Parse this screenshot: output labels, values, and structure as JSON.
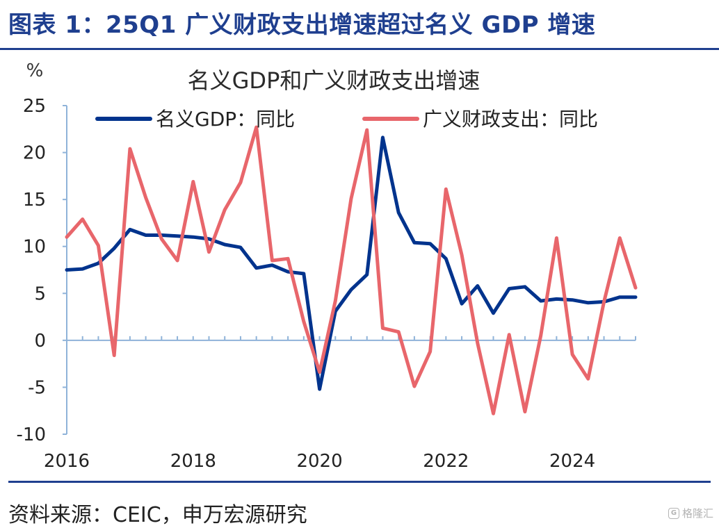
{
  "figure": {
    "title": "图表 1：25Q1 广义财政支出增速超过名义 GDP 增速",
    "source": "资料来源：CEIC，申万宏源研究",
    "watermark": "格隆汇"
  },
  "chart_data": {
    "type": "line",
    "title": "名义GDP和广义财政支出增速",
    "ylabel": "%",
    "xlabel": "",
    "ylim": [
      -10,
      25
    ],
    "yticks": [
      25,
      20,
      15,
      10,
      5,
      0,
      -5,
      -10
    ],
    "xtick_labels": [
      "2016",
      "2018",
      "2020",
      "2022",
      "2024"
    ],
    "x": [
      "2016Q1",
      "2016Q2",
      "2016Q3",
      "2016Q4",
      "2017Q1",
      "2017Q2",
      "2017Q3",
      "2017Q4",
      "2018Q1",
      "2018Q2",
      "2018Q3",
      "2018Q4",
      "2019Q1",
      "2019Q2",
      "2019Q3",
      "2019Q4",
      "2020Q1",
      "2020Q2",
      "2020Q3",
      "2020Q4",
      "2021Q1",
      "2021Q2",
      "2021Q3",
      "2021Q4",
      "2022Q1",
      "2022Q2",
      "2022Q3",
      "2022Q4",
      "2023Q1",
      "2023Q2",
      "2023Q3",
      "2023Q4",
      "2024Q1",
      "2024Q2",
      "2024Q3",
      "2024Q4",
      "2025Q1"
    ],
    "grid": false,
    "legend_position": "top",
    "series": [
      {
        "name": "名义GDP：同比",
        "color": "#00338d",
        "values": [
          7.5,
          7.6,
          8.2,
          9.8,
          11.8,
          11.2,
          11.2,
          11.1,
          11.0,
          10.8,
          10.2,
          9.9,
          7.7,
          8.0,
          7.3,
          7.1,
          -5.2,
          3.1,
          5.4,
          7.0,
          21.6,
          13.6,
          10.4,
          10.3,
          8.7,
          3.9,
          5.8,
          2.9,
          5.5,
          5.7,
          4.2,
          4.4,
          4.3,
          4.0,
          4.1,
          4.6,
          4.6
        ]
      },
      {
        "name": "广义财政支出：同比",
        "color": "#e8666b",
        "values": [
          11.0,
          12.9,
          10.1,
          -1.6,
          20.4,
          15.2,
          10.8,
          8.5,
          16.9,
          9.4,
          13.9,
          16.8,
          22.7,
          8.5,
          8.7,
          2.0,
          -3.4,
          4.2,
          15.1,
          22.4,
          1.3,
          0.9,
          -4.9,
          -1.2,
          16.1,
          9.1,
          -0.3,
          -7.8,
          0.6,
          -7.6,
          0.5,
          10.9,
          -1.5,
          -4.1,
          4.1,
          10.9,
          5.6
        ]
      }
    ]
  }
}
